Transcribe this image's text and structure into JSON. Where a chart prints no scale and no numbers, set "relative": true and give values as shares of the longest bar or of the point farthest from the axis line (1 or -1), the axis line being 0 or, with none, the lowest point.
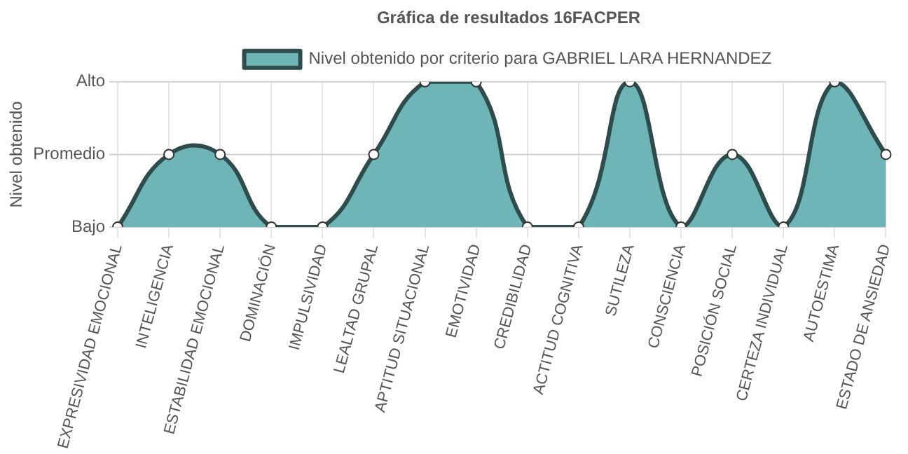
{
  "chart_data": {
    "type": "area",
    "title": "Gráfica de resultados 16FACPER",
    "ylabel": "Nivel obtenido",
    "categories": [
      "EXPRESIVIDAD EMOCIONAL",
      "INTELIGENCIA",
      "ESTABILIDAD EMOCIONAL",
      "DOMINACIÓN",
      "IMPULSIVIDAD",
      "LEALTAD GRUPAL",
      "APTITUD SITUACIONAL",
      "EMOTIVIDAD",
      "CREDIBILIDAD",
      "ACTITUD COGNITIVA",
      "SUTILEZA",
      "CONSCIENCIA",
      "POSICIÓN SOCIAL",
      "CERTEZA INDIVIDUAL",
      "AUTOESTIMA",
      "ESTADO DE ANSIEDAD"
    ],
    "series": [
      {
        "name": "Nivel obtenido por criterio para GABRIEL LARA HERNANDEZ",
        "color": "#6fb5b7",
        "values": [
          0,
          0.5,
          0.5,
          0,
          0,
          0.5,
          1,
          1,
          0,
          0,
          1,
          0,
          0.5,
          0,
          1,
          0.5
        ]
      }
    ],
    "relative": true,
    "ref_lines": [
      {
        "axis": "y",
        "value": 0,
        "label": "Bajo",
        "color": "#d0d0d0"
      },
      {
        "axis": "y",
        "value": 0.5,
        "label": "Promedio",
        "color": "#d0d0d0"
      },
      {
        "axis": "y",
        "value": 1,
        "label": "Alto",
        "color": "#d0d0d0"
      }
    ],
    "grid": true,
    "legend": "top",
    "marker": "circle"
  }
}
